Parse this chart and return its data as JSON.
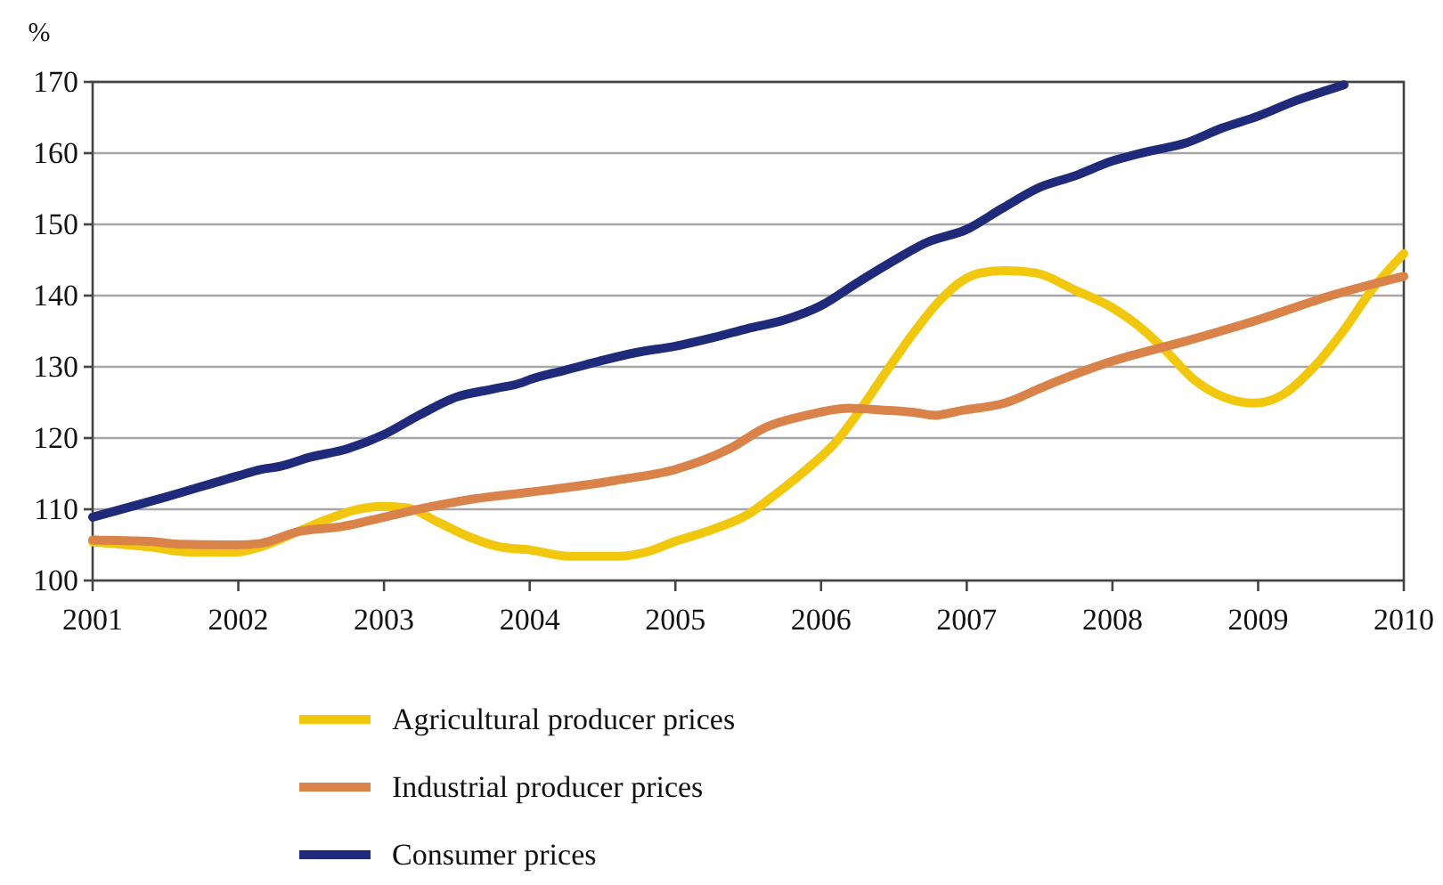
{
  "chart_data": {
    "type": "line",
    "ylabel": "%",
    "xlim": [
      2001,
      2010
    ],
    "xticks": [
      2001,
      2002,
      2003,
      2004,
      2005,
      2006,
      2007,
      2008,
      2009,
      2010
    ],
    "ylim": [
      100,
      170
    ],
    "yticks": [
      100,
      110,
      120,
      130,
      140,
      150,
      160,
      170
    ],
    "grid": "y",
    "legend": "bottom",
    "series": [
      {
        "name": "Agricultural producer prices",
        "color": "#f2c80f",
        "x": [
          2001,
          2001.39,
          2001.67,
          2001.99,
          2002.15,
          2002.4,
          2002.6,
          2002.8,
          2003,
          2003.16,
          2003.37,
          2003.6,
          2003.8,
          2004,
          2004.27,
          2004.6,
          2004.8,
          2005,
          2005.26,
          2005.5,
          2005.7,
          2005.9,
          2006.1,
          2006.27,
          2006.44,
          2006.64,
          2006.81,
          2006.97,
          2007.1,
          2007.26,
          2007.47,
          2007.74,
          2008,
          2008.2,
          2008.36,
          2008.56,
          2008.77,
          2008.97,
          2009.17,
          2009.38,
          2009.58,
          2009.78,
          2010
        ],
        "values": [
          105.4,
          104.7,
          104,
          104,
          104.7,
          106.8,
          108.5,
          109.9,
          110.4,
          110.2,
          108.2,
          106,
          104.7,
          104.3,
          103.4,
          103.4,
          104,
          105.5,
          107.2,
          109.3,
          112.3,
          115.6,
          119.4,
          124,
          129.1,
          134.9,
          139.2,
          142.1,
          143.2,
          143.5,
          143.2,
          140.8,
          138.3,
          135.4,
          132.4,
          128.2,
          125.7,
          124.9,
          126.1,
          129.9,
          134.9,
          140.8,
          145.9
        ]
      },
      {
        "name": "Industrial producer prices",
        "color": "#d9824a",
        "x": [
          2001,
          2001.39,
          2001.59,
          2001.99,
          2002.15,
          2002.4,
          2002.72,
          2003,
          2003.28,
          2003.6,
          2004,
          2004.27,
          2004.6,
          2005,
          2005.38,
          2005.62,
          2005.9,
          2006.19,
          2006.44,
          2006.64,
          2006.78,
          2006.97,
          2007.26,
          2007.55,
          2008,
          2008.52,
          2009,
          2009.5,
          2010
        ],
        "values": [
          105.7,
          105.5,
          105.1,
          105,
          105.2,
          106.8,
          107.6,
          108.9,
          110.2,
          111.4,
          112.4,
          113.1,
          114.1,
          115.6,
          118.6,
          121.5,
          123.2,
          124.2,
          123.9,
          123.6,
          123.2,
          123.9,
          124.9,
          127.4,
          130.8,
          133.7,
          136.6,
          140,
          142.7
        ]
      },
      {
        "name": "Consumer prices",
        "color": "#1f2a7a",
        "x": [
          2001,
          2001.5,
          2002,
          2002.16,
          2002.28,
          2002.49,
          2002.75,
          2003,
          2003.24,
          2003.49,
          2003.75,
          2003.95,
          2004,
          2004.24,
          2004.48,
          2004.73,
          2005,
          2005.26,
          2005.5,
          2005.75,
          2006,
          2006.24,
          2006.49,
          2006.73,
          2007,
          2007.24,
          2007.49,
          2007.74,
          2008,
          2008.24,
          2008.5,
          2008.75,
          2009,
          2009.25,
          2009.5,
          2009.59
        ],
        "values": [
          108.9,
          111.7,
          114.7,
          115.6,
          116,
          117.3,
          118.5,
          120.5,
          123.2,
          125.7,
          126.9,
          127.8,
          128.2,
          129.5,
          130.8,
          132,
          132.9,
          134.1,
          135.4,
          136.6,
          138.6,
          141.7,
          144.8,
          147.5,
          149.3,
          152.2,
          155.1,
          156.8,
          158.9,
          160.2,
          161.4,
          163.5,
          165.2,
          167.3,
          169,
          169.6
        ]
      }
    ]
  }
}
